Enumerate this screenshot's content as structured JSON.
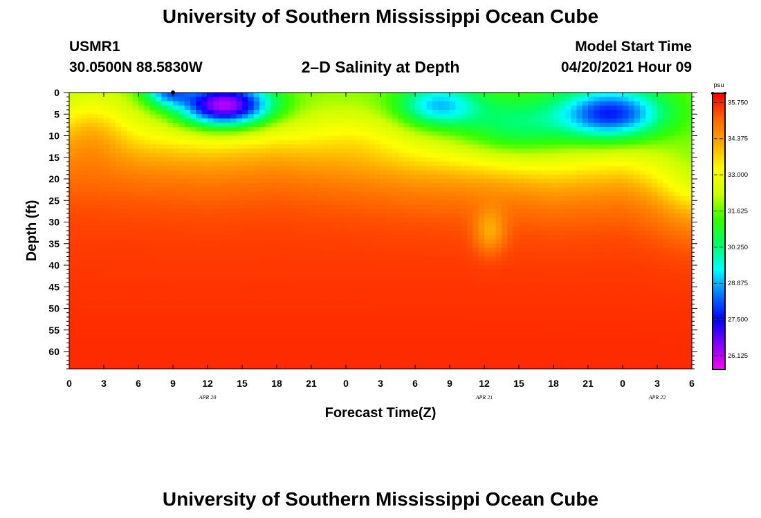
{
  "header": {
    "main_title": "University of Southern Mississippi Ocean Cube",
    "footer_title": "University of Southern Mississippi Ocean Cube",
    "station_id": "USMR1",
    "coordinates": "30.0500N  88.5830W",
    "chart_title": "2–D Salinity at Depth",
    "model_start_label": "Model Start Time",
    "model_start_value": "04/20/2021 Hour 09"
  },
  "chart_data": {
    "type": "heatmap",
    "title": "2–D Salinity at Depth",
    "xlabel": "Forecast Time(Z)",
    "ylabel": "Depth (ft)",
    "x_tick_labels": [
      "0",
      "3",
      "6",
      "9",
      "12",
      "15",
      "18",
      "21",
      "0",
      "3",
      "6",
      "9",
      "12",
      "15",
      "18",
      "21",
      "0",
      "3",
      "6"
    ],
    "date_labels": [
      {
        "label": "APR 20",
        "hour": 12
      },
      {
        "label": "APR 21",
        "hour": 36
      },
      {
        "label": "APR 22",
        "hour": 51
      }
    ],
    "x_range_hours": [
      0,
      54
    ],
    "y_tick_labels": [
      "0",
      "5",
      "10",
      "15",
      "20",
      "25",
      "30",
      "35",
      "40",
      "45",
      "50",
      "55",
      "60"
    ],
    "y_ticks": [
      0,
      5,
      10,
      15,
      20,
      25,
      30,
      35,
      40,
      45,
      50,
      55,
      60
    ],
    "ylim": [
      0,
      64
    ],
    "marker": {
      "hour": 9,
      "depth": 0
    },
    "colorbar": {
      "unit": "psu",
      "tick_labels": [
        "35.750",
        "34.375",
        "33.000",
        "31.625",
        "30.250",
        "28.875",
        "27.500",
        "26.125"
      ],
      "ticks": [
        35.75,
        34.375,
        33.0,
        31.625,
        30.25,
        28.875,
        27.5,
        26.125
      ],
      "range": [
        25.6,
        36.1
      ],
      "colors": [
        "#ff00ff",
        "#8800ff",
        "#0000ff",
        "#0077ff",
        "#00ffff",
        "#00ff66",
        "#33ff00",
        "#ccff00",
        "#ffff00",
        "#ffaa00",
        "#ff6600",
        "#ff0000"
      ]
    },
    "salinity_model": {
      "surface_base": 31.7,
      "deep_base": 35.35,
      "blobs": [
        {
          "hour": 13.5,
          "depth": 3,
          "amp": -6.0,
          "hour_width": 4.0,
          "depth_width": 5
        },
        {
          "hour": 8.5,
          "depth": 0,
          "amp": -2.8,
          "hour_width": 2.0,
          "depth_width": 3
        },
        {
          "hour": 32,
          "depth": 3,
          "amp": -2.8,
          "hour_width": 3.5,
          "depth_width": 5
        },
        {
          "hour": 47,
          "depth": 5,
          "amp": -4.2,
          "hour_width": 4.5,
          "depth_width": 6
        },
        {
          "hour": 38.5,
          "depth": 8,
          "amp": -1.7,
          "hour_width": 5,
          "depth_width": 7
        },
        {
          "hour": 2,
          "depth": 8,
          "amp": 1.0,
          "hour_width": 3,
          "depth_width": 8
        },
        {
          "hour": 25,
          "depth": 10,
          "amp": 0.5,
          "hour_width": 4,
          "depth_width": 6
        },
        {
          "hour": 36.5,
          "depth": 32,
          "amp": -1.2,
          "hour_width": 1.3,
          "depth_width": 5
        },
        {
          "hour": 54,
          "depth": 22,
          "amp": -0.8,
          "hour_width": 3,
          "depth_width": 10
        }
      ],
      "halocline": [
        {
          "hour": 0,
          "depth": 11
        },
        {
          "hour": 6,
          "depth": 12
        },
        {
          "hour": 12,
          "depth": 13
        },
        {
          "hour": 18,
          "depth": 12
        },
        {
          "hour": 24,
          "depth": 14
        },
        {
          "hour": 30,
          "depth": 16
        },
        {
          "hour": 36,
          "depth": 17
        },
        {
          "hour": 42,
          "depth": 19
        },
        {
          "hour": 48,
          "depth": 18
        },
        {
          "hour": 54,
          "depth": 22
        }
      ]
    }
  }
}
